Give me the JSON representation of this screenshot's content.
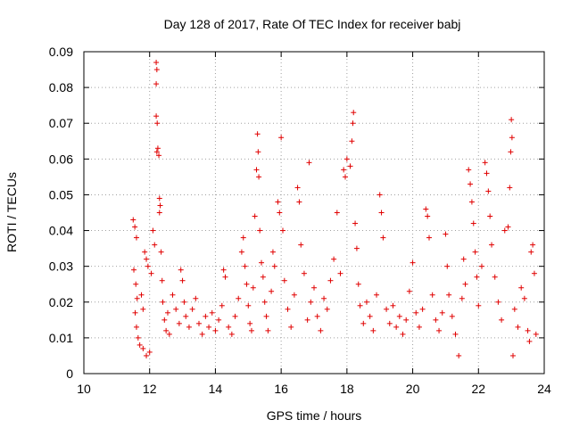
{
  "chart_data": {
    "type": "scatter",
    "title": "Day 128 of 2017, Rate Of TEC Index for receiver babj",
    "xlabel": "GPS time / hours",
    "ylabel": "ROTI / TECUs",
    "xlim": [
      10,
      24
    ],
    "ylim": [
      0,
      0.09
    ],
    "x_ticks": [
      10,
      12,
      14,
      16,
      18,
      20,
      22,
      24
    ],
    "x_tick_labels": [
      "10",
      "12",
      "14",
      "16",
      "18",
      "20",
      "22",
      "24"
    ],
    "y_ticks": [
      0,
      0.01,
      0.02,
      0.03,
      0.04,
      0.05,
      0.06,
      0.07,
      0.08,
      0.09
    ],
    "y_tick_labels": [
      "0",
      "0.01",
      "0.02",
      "0.03",
      "0.04",
      "0.05",
      "0.06",
      "0.07",
      "0.08",
      "0.09"
    ],
    "grid": true,
    "marker": "plus",
    "marker_color": "#e00000",
    "series": [
      {
        "name": "ROTI",
        "points": [
          [
            11.5,
            0.043
          ],
          [
            11.55,
            0.041
          ],
          [
            11.6,
            0.038
          ],
          [
            11.52,
            0.029
          ],
          [
            11.58,
            0.025
          ],
          [
            11.62,
            0.021
          ],
          [
            11.56,
            0.017
          ],
          [
            11.6,
            0.013
          ],
          [
            11.65,
            0.01
          ],
          [
            11.7,
            0.008
          ],
          [
            11.75,
            0.022
          ],
          [
            11.8,
            0.018
          ],
          [
            11.85,
            0.034
          ],
          [
            11.9,
            0.032
          ],
          [
            11.95,
            0.03
          ],
          [
            11.8,
            0.007
          ],
          [
            11.9,
            0.005
          ],
          [
            12.0,
            0.006
          ],
          [
            12.05,
            0.028
          ],
          [
            12.1,
            0.04
          ],
          [
            12.15,
            0.036
          ],
          [
            12.2,
            0.087
          ],
          [
            12.22,
            0.085
          ],
          [
            12.2,
            0.081
          ],
          [
            12.2,
            0.072
          ],
          [
            12.23,
            0.07
          ],
          [
            12.22,
            0.062
          ],
          [
            12.25,
            0.063
          ],
          [
            12.28,
            0.061
          ],
          [
            12.3,
            0.049
          ],
          [
            12.32,
            0.047
          ],
          [
            12.3,
            0.045
          ],
          [
            12.35,
            0.034
          ],
          [
            12.38,
            0.026
          ],
          [
            12.4,
            0.02
          ],
          [
            12.45,
            0.015
          ],
          [
            12.5,
            0.012
          ],
          [
            12.55,
            0.017
          ],
          [
            12.6,
            0.011
          ],
          [
            12.7,
            0.022
          ],
          [
            12.8,
            0.018
          ],
          [
            12.9,
            0.014
          ],
          [
            12.95,
            0.029
          ],
          [
            13.0,
            0.026
          ],
          [
            13.05,
            0.02
          ],
          [
            13.1,
            0.016
          ],
          [
            13.2,
            0.013
          ],
          [
            13.3,
            0.018
          ],
          [
            13.4,
            0.021
          ],
          [
            13.5,
            0.014
          ],
          [
            13.6,
            0.011
          ],
          [
            13.7,
            0.016
          ],
          [
            13.8,
            0.013
          ],
          [
            13.9,
            0.017
          ],
          [
            14.0,
            0.012
          ],
          [
            14.1,
            0.015
          ],
          [
            14.2,
            0.019
          ],
          [
            14.25,
            0.029
          ],
          [
            14.3,
            0.027
          ],
          [
            14.4,
            0.013
          ],
          [
            14.5,
            0.011
          ],
          [
            14.6,
            0.016
          ],
          [
            14.7,
            0.021
          ],
          [
            14.8,
            0.034
          ],
          [
            14.85,
            0.038
          ],
          [
            14.9,
            0.03
          ],
          [
            14.95,
            0.025
          ],
          [
            15.0,
            0.019
          ],
          [
            15.05,
            0.014
          ],
          [
            15.1,
            0.012
          ],
          [
            15.15,
            0.024
          ],
          [
            15.2,
            0.044
          ],
          [
            15.25,
            0.057
          ],
          [
            15.3,
            0.062
          ],
          [
            15.28,
            0.067
          ],
          [
            15.32,
            0.055
          ],
          [
            15.35,
            0.04
          ],
          [
            15.4,
            0.031
          ],
          [
            15.45,
            0.027
          ],
          [
            15.5,
            0.02
          ],
          [
            15.55,
            0.016
          ],
          [
            15.6,
            0.012
          ],
          [
            15.7,
            0.023
          ],
          [
            15.75,
            0.034
          ],
          [
            15.8,
            0.03
          ],
          [
            15.9,
            0.048
          ],
          [
            15.95,
            0.045
          ],
          [
            16.0,
            0.066
          ],
          [
            16.05,
            0.04
          ],
          [
            16.1,
            0.026
          ],
          [
            16.2,
            0.018
          ],
          [
            16.3,
            0.013
          ],
          [
            16.4,
            0.022
          ],
          [
            16.5,
            0.052
          ],
          [
            16.55,
            0.048
          ],
          [
            16.6,
            0.036
          ],
          [
            16.7,
            0.028
          ],
          [
            16.8,
            0.015
          ],
          [
            16.85,
            0.059
          ],
          [
            16.9,
            0.02
          ],
          [
            17.0,
            0.024
          ],
          [
            17.1,
            0.016
          ],
          [
            17.2,
            0.012
          ],
          [
            17.3,
            0.021
          ],
          [
            17.4,
            0.018
          ],
          [
            17.5,
            0.026
          ],
          [
            17.6,
            0.032
          ],
          [
            17.7,
            0.045
          ],
          [
            17.8,
            0.028
          ],
          [
            17.9,
            0.057
          ],
          [
            17.95,
            0.055
          ],
          [
            18.0,
            0.06
          ],
          [
            18.1,
            0.058
          ],
          [
            18.15,
            0.065
          ],
          [
            18.18,
            0.07
          ],
          [
            18.2,
            0.073
          ],
          [
            18.25,
            0.042
          ],
          [
            18.3,
            0.035
          ],
          [
            18.35,
            0.025
          ],
          [
            18.4,
            0.019
          ],
          [
            18.5,
            0.014
          ],
          [
            18.6,
            0.02
          ],
          [
            18.7,
            0.016
          ],
          [
            18.8,
            0.012
          ],
          [
            18.9,
            0.022
          ],
          [
            19.0,
            0.05
          ],
          [
            19.05,
            0.045
          ],
          [
            19.1,
            0.038
          ],
          [
            19.2,
            0.018
          ],
          [
            19.3,
            0.014
          ],
          [
            19.4,
            0.019
          ],
          [
            19.5,
            0.013
          ],
          [
            19.6,
            0.016
          ],
          [
            19.7,
            0.011
          ],
          [
            19.8,
            0.015
          ],
          [
            19.9,
            0.023
          ],
          [
            20.0,
            0.031
          ],
          [
            20.1,
            0.017
          ],
          [
            20.2,
            0.013
          ],
          [
            20.3,
            0.018
          ],
          [
            20.4,
            0.046
          ],
          [
            20.45,
            0.044
          ],
          [
            20.5,
            0.038
          ],
          [
            20.6,
            0.022
          ],
          [
            20.7,
            0.015
          ],
          [
            20.8,
            0.012
          ],
          [
            20.9,
            0.017
          ],
          [
            21.0,
            0.039
          ],
          [
            21.05,
            0.03
          ],
          [
            21.1,
            0.022
          ],
          [
            21.2,
            0.016
          ],
          [
            21.3,
            0.011
          ],
          [
            21.4,
            0.005
          ],
          [
            21.5,
            0.021
          ],
          [
            21.55,
            0.032
          ],
          [
            21.6,
            0.025
          ],
          [
            21.7,
            0.057
          ],
          [
            21.75,
            0.053
          ],
          [
            21.8,
            0.048
          ],
          [
            21.85,
            0.042
          ],
          [
            21.9,
            0.034
          ],
          [
            21.95,
            0.027
          ],
          [
            22.0,
            0.019
          ],
          [
            22.1,
            0.03
          ],
          [
            22.2,
            0.059
          ],
          [
            22.25,
            0.056
          ],
          [
            22.3,
            0.051
          ],
          [
            22.35,
            0.044
          ],
          [
            22.4,
            0.036
          ],
          [
            22.5,
            0.027
          ],
          [
            22.6,
            0.02
          ],
          [
            22.7,
            0.015
          ],
          [
            22.8,
            0.04
          ],
          [
            22.9,
            0.041
          ],
          [
            22.95,
            0.052
          ],
          [
            22.98,
            0.062
          ],
          [
            23.0,
            0.071
          ],
          [
            23.02,
            0.066
          ],
          [
            23.05,
            0.005
          ],
          [
            23.1,
            0.018
          ],
          [
            23.2,
            0.013
          ],
          [
            23.3,
            0.024
          ],
          [
            23.4,
            0.021
          ],
          [
            23.5,
            0.012
          ],
          [
            23.55,
            0.009
          ],
          [
            23.6,
            0.034
          ],
          [
            23.65,
            0.036
          ],
          [
            23.7,
            0.028
          ],
          [
            23.75,
            0.011
          ]
        ]
      }
    ]
  }
}
